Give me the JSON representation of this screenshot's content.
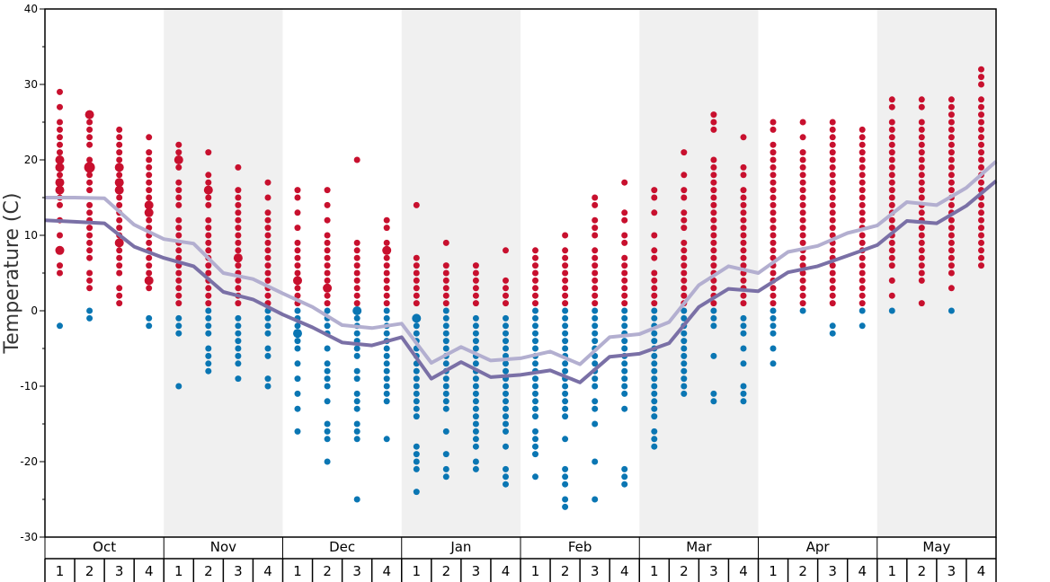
{
  "chart_data": {
    "type": "scatter",
    "title": "",
    "ylabel": "Temperature (C)",
    "ylim": [
      -30,
      40
    ],
    "yticks": [
      -30,
      -20,
      -10,
      0,
      10,
      20,
      30,
      40
    ],
    "months": [
      "Oct",
      "Nov",
      "Dec",
      "Jan",
      "Feb",
      "Mar",
      "Apr",
      "May"
    ],
    "weeks_per_month": [
      "1",
      "2",
      "3",
      "4"
    ],
    "shaded_months": [
      1,
      3,
      5,
      7
    ],
    "colors": {
      "warm_dots": "#c8102e",
      "cold_dots": "#0a76b3",
      "light_line": "#b3afd0",
      "dark_line": "#7a70a6",
      "shade": "#f0f0f0"
    },
    "series": [
      {
        "values": [
          15.0,
          15.0,
          14.9,
          11.4,
          9.5,
          8.9,
          5.0,
          4.2,
          2.3,
          0.5,
          -1.9,
          -2.3,
          -1.7,
          -6.9,
          -4.8,
          -6.6,
          -6.3,
          -5.4,
          -7.1,
          -3.5,
          -3.1,
          -1.5,
          3.4,
          5.9,
          5.0,
          7.8,
          8.6,
          10.3,
          11.3,
          14.4,
          14.0,
          16.3,
          19.8
        ]
      },
      {
        "values": [
          12.0,
          11.8,
          11.6,
          8.5,
          7.0,
          5.9,
          2.5,
          1.5,
          -0.5,
          -2.2,
          -4.2,
          -4.6,
          -3.5,
          -9.0,
          -6.8,
          -8.8,
          -8.5,
          -7.9,
          -9.5,
          -6.1,
          -5.7,
          -4.3,
          0.5,
          2.9,
          2.6,
          5.1,
          5.9,
          7.3,
          8.7,
          11.9,
          11.6,
          13.9,
          17.2
        ]
      }
    ],
    "weekly_observations": [
      {
        "warm": [
          29,
          27,
          25,
          24,
          23,
          22,
          21,
          20,
          20,
          19,
          19,
          18,
          17,
          17,
          16,
          16,
          15,
          14,
          12,
          10,
          8,
          8,
          6,
          5
        ],
        "cold": [
          -2
        ]
      },
      {
        "warm": [
          26,
          26,
          25,
          24,
          23,
          22,
          20,
          19,
          19,
          19,
          18,
          17,
          16,
          14,
          13,
          12,
          11,
          10,
          9,
          8,
          7,
          5,
          4,
          3
        ],
        "cold": [
          0,
          -1
        ]
      },
      {
        "warm": [
          24,
          23,
          22,
          21,
          20,
          19,
          19,
          18,
          17,
          17,
          16,
          16,
          15,
          14,
          13,
          12,
          11,
          10,
          9,
          9,
          8,
          7,
          6,
          5,
          3,
          2,
          1
        ],
        "cold": []
      },
      {
        "warm": [
          23,
          21,
          20,
          19,
          18,
          17,
          16,
          15,
          14,
          14,
          13,
          13,
          12,
          11,
          10,
          9,
          8,
          7,
          6,
          5,
          4,
          4,
          3
        ],
        "cold": [
          -1,
          -2
        ]
      },
      {
        "warm": [
          22,
          21,
          20,
          20,
          19,
          17,
          16,
          15,
          14,
          12,
          11,
          10,
          9,
          8,
          7,
          6,
          5,
          4,
          3,
          2,
          1
        ],
        "cold": [
          -1,
          -2,
          -3,
          -10
        ]
      },
      {
        "warm": [
          21,
          18,
          17,
          16,
          16,
          15,
          14,
          12,
          11,
          10,
          9,
          8,
          7,
          6,
          5,
          4,
          3,
          2,
          1
        ],
        "cold": [
          0,
          -1,
          -2,
          -3,
          -5,
          -6,
          -7,
          -8
        ]
      },
      {
        "warm": [
          19,
          16,
          15,
          14,
          13,
          12,
          11,
          10,
          9,
          8,
          7,
          7,
          6,
          5,
          4,
          3,
          2,
          1
        ],
        "cold": [
          -1,
          -2,
          -3,
          -4,
          -5,
          -6,
          -7,
          -9
        ]
      },
      {
        "warm": [
          17,
          15,
          13,
          12,
          11,
          10,
          9,
          8,
          7,
          6,
          5,
          4,
          3,
          2,
          1
        ],
        "cold": [
          0,
          -1,
          -2,
          -3,
          -5,
          -6,
          -9,
          -10
        ]
      },
      {
        "warm": [
          16,
          15,
          13,
          11,
          9,
          8,
          7,
          6,
          5,
          4,
          4,
          3,
          2,
          1
        ],
        "cold": [
          0,
          -1,
          -2,
          -3,
          -3,
          -4,
          -5,
          -7,
          -9,
          -11,
          -13,
          -16
        ]
      },
      {
        "warm": [
          16,
          14,
          12,
          10,
          9,
          8,
          7,
          6,
          5,
          4,
          3,
          3,
          2,
          1
        ],
        "cold": [
          0,
          -1,
          -2,
          -3,
          -5,
          -7,
          -8,
          -9,
          -10,
          -12,
          -15,
          -16,
          -17,
          -20
        ]
      },
      {
        "warm": [
          20,
          9,
          8,
          7,
          6,
          5,
          4,
          3,
          2,
          1
        ],
        "cold": [
          0,
          0,
          -1,
          -2,
          -3,
          -4,
          -5,
          -6,
          -8,
          -9,
          -11,
          -12,
          -13,
          -15,
          -16,
          -17,
          -25
        ]
      },
      {
        "warm": [
          12,
          11,
          9,
          8,
          8,
          7,
          6,
          5,
          4,
          3,
          2,
          1
        ],
        "cold": [
          0,
          -1,
          -2,
          -3,
          -4,
          -5,
          -6,
          -7,
          -8,
          -9,
          -10,
          -11,
          -12,
          -17
        ]
      },
      {
        "warm": [
          14,
          7,
          6,
          5,
          4,
          3,
          2,
          1
        ],
        "cold": [
          -1,
          -1,
          -2,
          -3,
          -4,
          -5,
          -6,
          -7,
          -8,
          -9,
          -10,
          -11,
          -12,
          -13,
          -14,
          -18,
          -19,
          -20,
          -21,
          -24
        ]
      },
      {
        "warm": [
          9,
          6,
          5,
          4,
          3,
          2,
          1
        ],
        "cold": [
          0,
          -1,
          -2,
          -3,
          -4,
          -5,
          -6,
          -7,
          -8,
          -9,
          -10,
          -11,
          -12,
          -13,
          -16,
          -19,
          -21,
          -22
        ]
      },
      {
        "warm": [
          6,
          5,
          4,
          3,
          2,
          1
        ],
        "cold": [
          -1,
          -2,
          -3,
          -4,
          -5,
          -6,
          -7,
          -8,
          -9,
          -10,
          -11,
          -12,
          -13,
          -14,
          -15,
          -16,
          -17,
          -18,
          -20,
          -21
        ]
      },
      {
        "warm": [
          8,
          4,
          3,
          2,
          1
        ],
        "cold": [
          -1,
          -2,
          -3,
          -4,
          -5,
          -6,
          -7,
          -8,
          -9,
          -10,
          -11,
          -12,
          -13,
          -14,
          -15,
          -16,
          -18,
          -21,
          -22,
          -23
        ]
      },
      {
        "warm": [
          8,
          7,
          6,
          5,
          4,
          3,
          2,
          1
        ],
        "cold": [
          0,
          -1,
          -2,
          -3,
          -4,
          -5,
          -6,
          -7,
          -8,
          -9,
          -10,
          -11,
          -12,
          -13,
          -14,
          -16,
          -17,
          -18,
          -19,
          -22
        ]
      },
      {
        "warm": [
          10,
          8,
          7,
          6,
          5,
          4,
          3,
          2,
          1
        ],
        "cold": [
          0,
          -1,
          -2,
          -3,
          -4,
          -5,
          -6,
          -7,
          -8,
          -9,
          -10,
          -11,
          -12,
          -13,
          -14,
          -17,
          -21,
          -22,
          -23,
          -25,
          -26
        ]
      },
      {
        "warm": [
          15,
          14,
          12,
          11,
          10,
          8,
          7,
          6,
          5,
          4,
          3,
          2,
          1
        ],
        "cold": [
          0,
          -1,
          -2,
          -3,
          -4,
          -5,
          -6,
          -7,
          -8,
          -9,
          -10,
          -12,
          -13,
          -15,
          -20,
          -25
        ]
      },
      {
        "warm": [
          17,
          13,
          12,
          10,
          9,
          7,
          6,
          5,
          4,
          3,
          2,
          1
        ],
        "cold": [
          0,
          -1,
          -2,
          -3,
          -4,
          -5,
          -6,
          -7,
          -8,
          -9,
          -10,
          -11,
          -13,
          -21,
          -22,
          -23
        ]
      },
      {
        "warm": [
          16,
          15,
          13,
          10,
          8,
          7,
          5,
          4,
          3,
          2,
          1
        ],
        "cold": [
          0,
          -1,
          -2,
          -3,
          -4,
          -5,
          -6,
          -7,
          -8,
          -9,
          -10,
          -11,
          -12,
          -13,
          -14,
          -16,
          -17,
          -18
        ]
      },
      {
        "warm": [
          21,
          18,
          16,
          15,
          13,
          12,
          11,
          9,
          8,
          7,
          6,
          5,
          4,
          3,
          2,
          1
        ],
        "cold": [
          0,
          -1,
          -2,
          -3,
          -4,
          -5,
          -6,
          -7,
          -8,
          -9,
          -10,
          -11
        ]
      },
      {
        "warm": [
          26,
          25,
          24,
          20,
          19,
          18,
          17,
          16,
          15,
          14,
          13,
          12,
          11,
          10,
          9,
          8,
          7,
          6,
          5,
          4,
          3,
          2,
          1
        ],
        "cold": [
          0,
          -1,
          -2,
          -6,
          -11,
          -12
        ]
      },
      {
        "warm": [
          23,
          19,
          18,
          16,
          15,
          14,
          13,
          12,
          11,
          10,
          9,
          8,
          7,
          6,
          5,
          4,
          3,
          2,
          1
        ],
        "cold": [
          -1,
          -2,
          -3,
          -5,
          -7,
          -10,
          -11,
          -12
        ]
      },
      {
        "warm": [
          25,
          24,
          22,
          21,
          20,
          19,
          18,
          17,
          16,
          15,
          14,
          13,
          12,
          11,
          10,
          9,
          8,
          7,
          6,
          5,
          4,
          3,
          2,
          1
        ],
        "cold": [
          0,
          -1,
          -2,
          -3,
          -5,
          -7
        ]
      },
      {
        "warm": [
          25,
          23,
          21,
          20,
          19,
          18,
          17,
          16,
          15,
          14,
          13,
          12,
          11,
          10,
          9,
          8,
          7,
          6,
          5,
          4,
          3,
          2,
          1
        ],
        "cold": [
          0
        ]
      },
      {
        "warm": [
          25,
          24,
          23,
          22,
          21,
          20,
          19,
          18,
          17,
          16,
          15,
          14,
          13,
          12,
          11,
          10,
          9,
          8,
          7,
          6,
          5,
          4,
          3,
          2,
          1
        ],
        "cold": [
          -2,
          -3
        ]
      },
      {
        "warm": [
          24,
          23,
          22,
          21,
          20,
          19,
          18,
          17,
          16,
          15,
          14,
          13,
          12,
          11,
          10,
          9,
          8,
          7,
          6,
          5,
          4,
          3,
          2,
          1
        ],
        "cold": [
          0,
          -2
        ]
      },
      {
        "warm": [
          28,
          27,
          25,
          24,
          23,
          22,
          21,
          20,
          19,
          18,
          17,
          16,
          15,
          14,
          13,
          12,
          11,
          10,
          9,
          8,
          7,
          6,
          4,
          2
        ],
        "cold": [
          0
        ]
      },
      {
        "warm": [
          28,
          27,
          25,
          24,
          23,
          22,
          21,
          20,
          19,
          18,
          17,
          16,
          15,
          14,
          13,
          12,
          11,
          10,
          9,
          8,
          7,
          6,
          5,
          4,
          1
        ],
        "cold": []
      },
      {
        "warm": [
          28,
          27,
          26,
          25,
          24,
          23,
          22,
          21,
          20,
          19,
          18,
          17,
          16,
          15,
          14,
          13,
          12,
          11,
          10,
          9,
          8,
          7,
          6,
          5,
          3
        ],
        "cold": [
          0
        ]
      },
      {
        "warm": [
          32,
          31,
          30,
          28,
          27,
          26,
          25,
          24,
          23,
          22,
          21,
          20,
          19,
          18,
          17,
          16,
          15,
          14,
          13,
          12,
          11,
          10,
          9,
          8,
          7,
          6
        ]
      }
    ]
  }
}
